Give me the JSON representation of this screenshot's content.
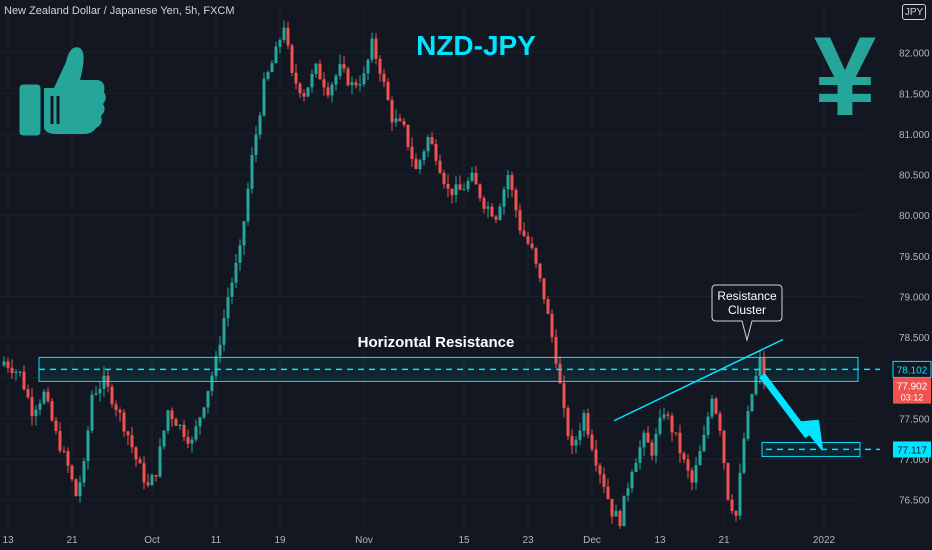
{
  "header": {
    "instrument": "New Zealand Dollar / Japanese Yen, 5h, FXCM",
    "currency_badge": "JPY"
  },
  "colors": {
    "background": "#131722",
    "up": "#26a69a",
    "down": "#ef5350",
    "accent": "#00e5ff",
    "grid": "#1c202b"
  },
  "icons": {
    "thumbs_up": "thumbs-up-icon",
    "yen": "yen-sign-icon"
  },
  "chart_data": {
    "type": "candlestick",
    "title": "NZD-JPY",
    "ylim": [
      76.15,
      82.55
    ],
    "y_ticks": [
      76.5,
      77.0,
      77.5,
      78.0,
      78.5,
      79.0,
      79.5,
      80.0,
      80.5,
      81.0,
      81.5,
      82.0
    ],
    "y_tick_labels": [
      "76.500",
      "77.000",
      "77.500",
      "78.000",
      "78.500",
      "79.000",
      "79.500",
      "80.000",
      "80.500",
      "81.000",
      "81.500",
      "82.000"
    ],
    "x_tick_labels": [
      "13",
      "21",
      "Oct",
      "11",
      "19",
      "Nov",
      "15",
      "23",
      "Dec",
      "13",
      "21",
      "2022"
    ],
    "x_tick_index": [
      1,
      17,
      37,
      53,
      69,
      90,
      115,
      131,
      147,
      164,
      180,
      205
    ],
    "close_path": [
      [
        0,
        78.2
      ],
      [
        4,
        78.05
      ],
      [
        7,
        77.6
      ],
      [
        10,
        77.8
      ],
      [
        13,
        77.3
      ],
      [
        16,
        76.9
      ],
      [
        18,
        76.55
      ],
      [
        20,
        76.9
      ],
      [
        22,
        77.8
      ],
      [
        25,
        77.95
      ],
      [
        28,
        77.65
      ],
      [
        31,
        77.3
      ],
      [
        33,
        77.0
      ],
      [
        36,
        76.65
      ],
      [
        38,
        76.85
      ],
      [
        41,
        77.6
      ],
      [
        44,
        77.4
      ],
      [
        47,
        77.2
      ],
      [
        50,
        77.7
      ],
      [
        53,
        78.2
      ],
      [
        56,
        79.0
      ],
      [
        59,
        79.55
      ],
      [
        62,
        80.7
      ],
      [
        65,
        81.6
      ],
      [
        68,
        82.0
      ],
      [
        70,
        82.35
      ],
      [
        72,
        81.7
      ],
      [
        75,
        81.5
      ],
      [
        78,
        81.8
      ],
      [
        81,
        81.55
      ],
      [
        84,
        81.8
      ],
      [
        87,
        81.6
      ],
      [
        90,
        81.7
      ],
      [
        92,
        82.1
      ],
      [
        94,
        81.8
      ],
      [
        97,
        81.2
      ],
      [
        100,
        81.05
      ],
      [
        103,
        80.55
      ],
      [
        106,
        80.95
      ],
      [
        108,
        80.75
      ],
      [
        111,
        80.3
      ],
      [
        114,
        80.3
      ],
      [
        117,
        80.45
      ],
      [
        120,
        80.15
      ],
      [
        123,
        80.0
      ],
      [
        126,
        80.5
      ],
      [
        129,
        79.85
      ],
      [
        132,
        79.55
      ],
      [
        135,
        79.0
      ],
      [
        138,
        78.25
      ],
      [
        140,
        77.55
      ],
      [
        142,
        77.1
      ],
      [
        145,
        77.55
      ],
      [
        148,
        77.0
      ],
      [
        150,
        76.7
      ],
      [
        152,
        76.35
      ],
      [
        154,
        76.25
      ],
      [
        157,
        76.9
      ],
      [
        160,
        77.25
      ],
      [
        162,
        77.1
      ],
      [
        165,
        77.6
      ],
      [
        168,
        77.25
      ],
      [
        170,
        76.95
      ],
      [
        172,
        76.7
      ],
      [
        175,
        77.25
      ],
      [
        177,
        77.8
      ],
      [
        179,
        77.4
      ],
      [
        181,
        76.55
      ],
      [
        183,
        76.3
      ],
      [
        185,
        77.25
      ],
      [
        187,
        77.8
      ],
      [
        189,
        78.2
      ],
      [
        190,
        77.95
      ]
    ],
    "horizontal_lines": [
      {
        "value": 78.102,
        "label": "78.102"
      },
      {
        "value": 77.117,
        "label": "77.117"
      }
    ],
    "price_label": {
      "value": 77.902,
      "label": "77.902",
      "countdown": "03:12"
    },
    "annotations": [
      "Horizontal Resistance",
      "Resistance Cluster"
    ]
  }
}
